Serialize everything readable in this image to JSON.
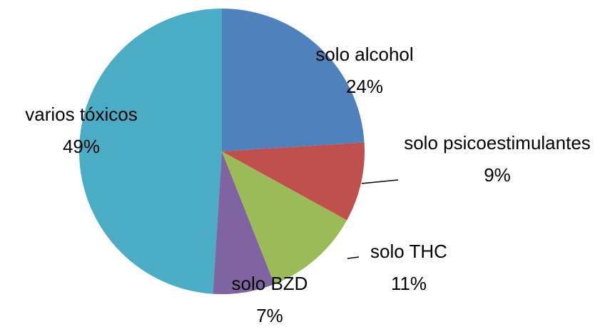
{
  "chart_data": {
    "type": "pie",
    "categories": [
      "solo alcohol",
      "solo psicoestimulantes",
      "solo THC",
      "solo BZD",
      "varios tóxicos"
    ],
    "values": [
      24,
      9,
      11,
      7,
      49
    ],
    "value_labels": [
      "24%",
      "9%",
      "11%",
      "7%",
      "49%"
    ],
    "colors": [
      "#4F81BD",
      "#C0504D",
      "#9BBB59",
      "#8064A2",
      "#4BACC6"
    ]
  }
}
